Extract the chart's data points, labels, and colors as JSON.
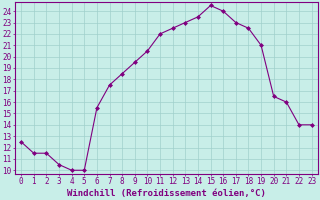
{
  "x": [
    0,
    1,
    2,
    3,
    4,
    5,
    6,
    7,
    8,
    9,
    10,
    11,
    12,
    13,
    14,
    15,
    16,
    17,
    18,
    19,
    20,
    21,
    22,
    23
  ],
  "y": [
    12.5,
    11.5,
    11.5,
    10.5,
    10.0,
    10.0,
    15.5,
    17.5,
    18.5,
    19.5,
    20.5,
    22.0,
    22.5,
    23.0,
    23.5,
    24.5,
    24.0,
    23.0,
    22.5,
    21.0,
    16.5,
    16.0,
    14.0,
    14.0
  ],
  "line_color": "#800080",
  "marker": "D",
  "marker_size": 2,
  "bg_color": "#c8eee8",
  "grid_color": "#a0d0cc",
  "xlabel": "Windchill (Refroidissement éolien,°C)",
  "xlabel_color": "#800080",
  "xlabel_fontsize": 6.5,
  "tick_color": "#800080",
  "tick_fontsize": 5.5,
  "ylim": [
    10,
    24.5
  ],
  "xlim": [
    -0.5,
    23.5
  ],
  "yticks": [
    10,
    11,
    12,
    13,
    14,
    15,
    16,
    17,
    18,
    19,
    20,
    21,
    22,
    23,
    24
  ],
  "xticks": [
    0,
    1,
    2,
    3,
    4,
    5,
    6,
    7,
    8,
    9,
    10,
    11,
    12,
    13,
    14,
    15,
    16,
    17,
    18,
    19,
    20,
    21,
    22,
    23
  ]
}
